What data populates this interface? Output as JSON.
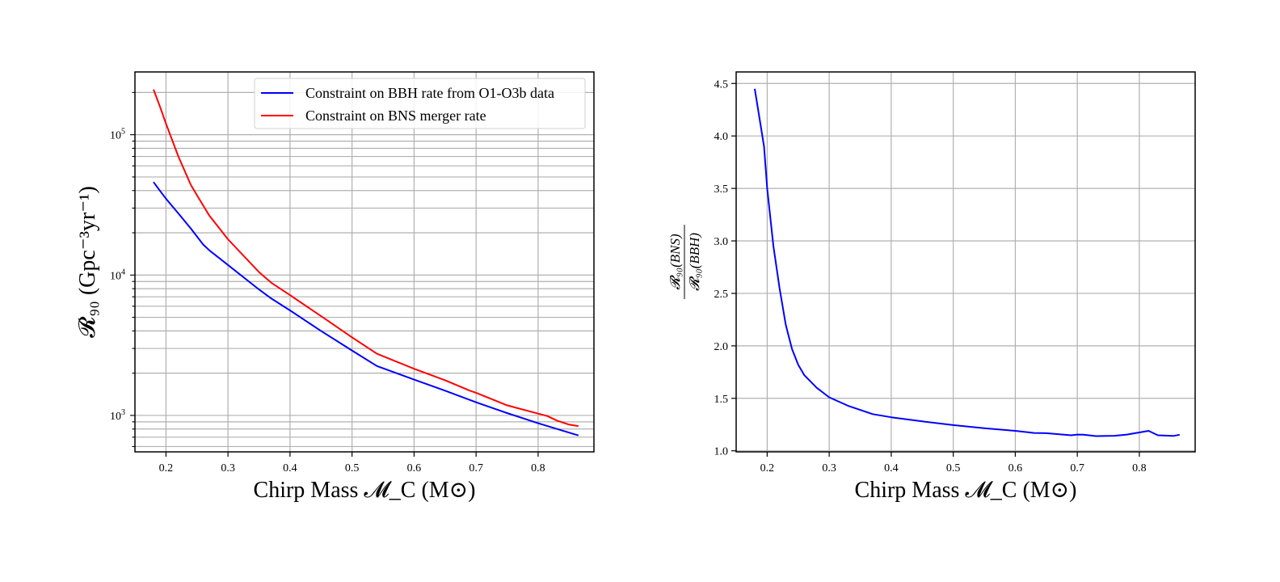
{
  "chart_data": [
    {
      "type": "line",
      "title": "",
      "xlabel": "Chirp Mass 𝓜_C (M⊙)",
      "ylabel": "𝓡₉₀ (Gpc⁻³yr⁻¹)",
      "yscale": "log",
      "xlim": [
        0.15,
        0.89
      ],
      "ylim": [
        550,
        280000
      ],
      "xticks": [
        0.2,
        0.3,
        0.4,
        0.5,
        0.6,
        0.7,
        0.8
      ],
      "xtick_labels": [
        "0.2",
        "0.3",
        "0.4",
        "0.5",
        "0.6",
        "0.7",
        "0.8"
      ],
      "yticks_major": [
        1000,
        10000,
        100000
      ],
      "ytick_labels": [
        {
          "base": "10",
          "exp": "3"
        },
        {
          "base": "10",
          "exp": "4"
        },
        {
          "base": "10",
          "exp": "5"
        }
      ],
      "grid": true,
      "legend_position": "top-right",
      "series": [
        {
          "name": "Constraint on BBH rate from O1-O3b data",
          "color": "#0000ff",
          "x": [
            0.18,
            0.19,
            0.2,
            0.22,
            0.24,
            0.26,
            0.27,
            0.3,
            0.35,
            0.37,
            0.4,
            0.45,
            0.5,
            0.54,
            0.6,
            0.65,
            0.7,
            0.75,
            0.8,
            0.865
          ],
          "y": [
            46000,
            40000,
            35000,
            27500,
            21500,
            16500,
            15000,
            11800,
            7900,
            6800,
            5600,
            4000,
            2900,
            2250,
            1800,
            1500,
            1240,
            1040,
            880,
            720
          ]
        },
        {
          "name": "Constraint on BNS merger rate",
          "color": "#ff0000",
          "x": [
            0.18,
            0.19,
            0.2,
            0.22,
            0.24,
            0.25,
            0.27,
            0.3,
            0.35,
            0.37,
            0.4,
            0.45,
            0.5,
            0.54,
            0.6,
            0.65,
            0.69,
            0.7,
            0.75,
            0.8,
            0.815,
            0.83,
            0.85,
            0.865
          ],
          "y": [
            210000,
            160000,
            120000,
            70000,
            44000,
            37000,
            26500,
            18000,
            10500,
            8800,
            7200,
            5100,
            3600,
            2750,
            2150,
            1780,
            1500,
            1450,
            1180,
            1030,
            990,
            920,
            860,
            840
          ]
        }
      ]
    },
    {
      "type": "line",
      "title": "",
      "xlabel": "Chirp Mass 𝓜_C (M⊙)",
      "ylabel_num": "𝓡₉₀(BNS)",
      "ylabel_den": "𝓡₉₀(BBH)",
      "yscale": "linear",
      "xlim": [
        0.15,
        0.89
      ],
      "ylim": [
        0.99,
        4.61
      ],
      "xticks": [
        0.2,
        0.3,
        0.4,
        0.5,
        0.6,
        0.7,
        0.8
      ],
      "xtick_labels": [
        "0.2",
        "0.3",
        "0.4",
        "0.5",
        "0.6",
        "0.7",
        "0.8"
      ],
      "yticks": [
        1.0,
        1.5,
        2.0,
        2.5,
        3.0,
        3.5,
        4.0,
        4.5
      ],
      "ytick_labels": [
        "1.0",
        "1.5",
        "2.0",
        "2.5",
        "3.0",
        "3.5",
        "4.0",
        "4.5"
      ],
      "grid": true,
      "series": [
        {
          "color": "#0000ff",
          "x": [
            0.18,
            0.195,
            0.2,
            0.21,
            0.22,
            0.23,
            0.24,
            0.25,
            0.26,
            0.28,
            0.3,
            0.33,
            0.37,
            0.4,
            0.45,
            0.5,
            0.55,
            0.6,
            0.63,
            0.65,
            0.69,
            0.7,
            0.71,
            0.73,
            0.76,
            0.78,
            0.8,
            0.815,
            0.83,
            0.855,
            0.865
          ],
          "y": [
            4.45,
            3.9,
            3.5,
            2.95,
            2.55,
            2.2,
            1.97,
            1.82,
            1.72,
            1.6,
            1.51,
            1.43,
            1.35,
            1.32,
            1.28,
            1.245,
            1.215,
            1.19,
            1.17,
            1.168,
            1.148,
            1.155,
            1.153,
            1.14,
            1.143,
            1.155,
            1.175,
            1.19,
            1.148,
            1.142,
            1.153
          ]
        }
      ]
    }
  ]
}
